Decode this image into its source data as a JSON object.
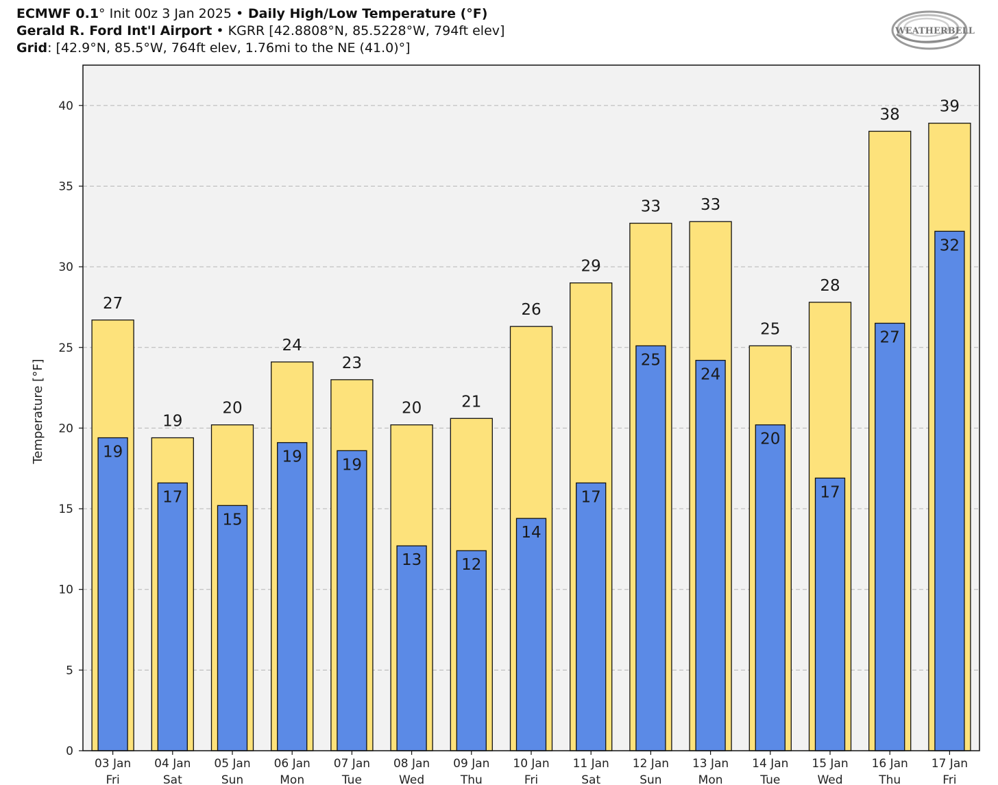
{
  "header": {
    "line1_model": "ECMWF 0.1",
    "line1_deg": "°",
    "line1_init": " Init 00z 3 Jan 2025 ",
    "line1_bullet": "•",
    "line1_title": " Daily High/Low Temperature (°F)",
    "line2_station": "Gerald R. Ford Int'l Airport",
    "line2_rest": " • KGRR [42.8808°N, 85.5228°W, 794ft elev]",
    "line3_label": "Grid",
    "line3_rest": ": [42.9°N, 85.5°W, 764ft elev, 1.76mi to the NE (41.0)°]"
  },
  "logo": {
    "text": "WEATHERBELL",
    "icon": "weatherbell-swirl-logo-icon"
  },
  "colors": {
    "high_fill": "#fde27b",
    "low_fill": "#5b8ae6",
    "plot_bg": "#f2f2f2",
    "grid": "#b5b5b5",
    "border": "#111111"
  },
  "chart_data": {
    "type": "bar",
    "title": "Daily High/Low Temperature (°F)",
    "ylabel": "Temperature [°F]",
    "xlabel": "",
    "ylim": [
      0,
      42.5
    ],
    "yticks": [
      0,
      5,
      10,
      15,
      20,
      25,
      30,
      35,
      40
    ],
    "grid": true,
    "categories": [
      "03 Jan",
      "04 Jan",
      "05 Jan",
      "06 Jan",
      "07 Jan",
      "08 Jan",
      "09 Jan",
      "10 Jan",
      "11 Jan",
      "12 Jan",
      "13 Jan",
      "14 Jan",
      "15 Jan",
      "16 Jan",
      "17 Jan"
    ],
    "weekdays": [
      "Fri",
      "Sat",
      "Sun",
      "Mon",
      "Tue",
      "Wed",
      "Thu",
      "Fri",
      "Sat",
      "Sun",
      "Mon",
      "Tue",
      "Wed",
      "Thu",
      "Fri"
    ],
    "series": [
      {
        "values": [
          26.7,
          19.4,
          20.2,
          24.1,
          23.0,
          20.2,
          20.6,
          26.3,
          29.0,
          32.7,
          32.8,
          25.1,
          27.8,
          38.4,
          38.9
        ],
        "labels": [
          "27",
          "19",
          "20",
          "24",
          "23",
          "20",
          "21",
          "26",
          "29",
          "33",
          "33",
          "25",
          "28",
          "38",
          "39"
        ]
      },
      {
        "values": [
          19.4,
          16.6,
          15.2,
          19.1,
          18.6,
          12.7,
          12.4,
          14.4,
          16.6,
          25.1,
          24.2,
          20.2,
          16.9,
          26.5,
          32.2
        ],
        "labels": [
          "19",
          "17",
          "15",
          "19",
          "19",
          "13",
          "12",
          "14",
          "17",
          "25",
          "24",
          "20",
          "17",
          "27",
          "32"
        ]
      }
    ]
  }
}
